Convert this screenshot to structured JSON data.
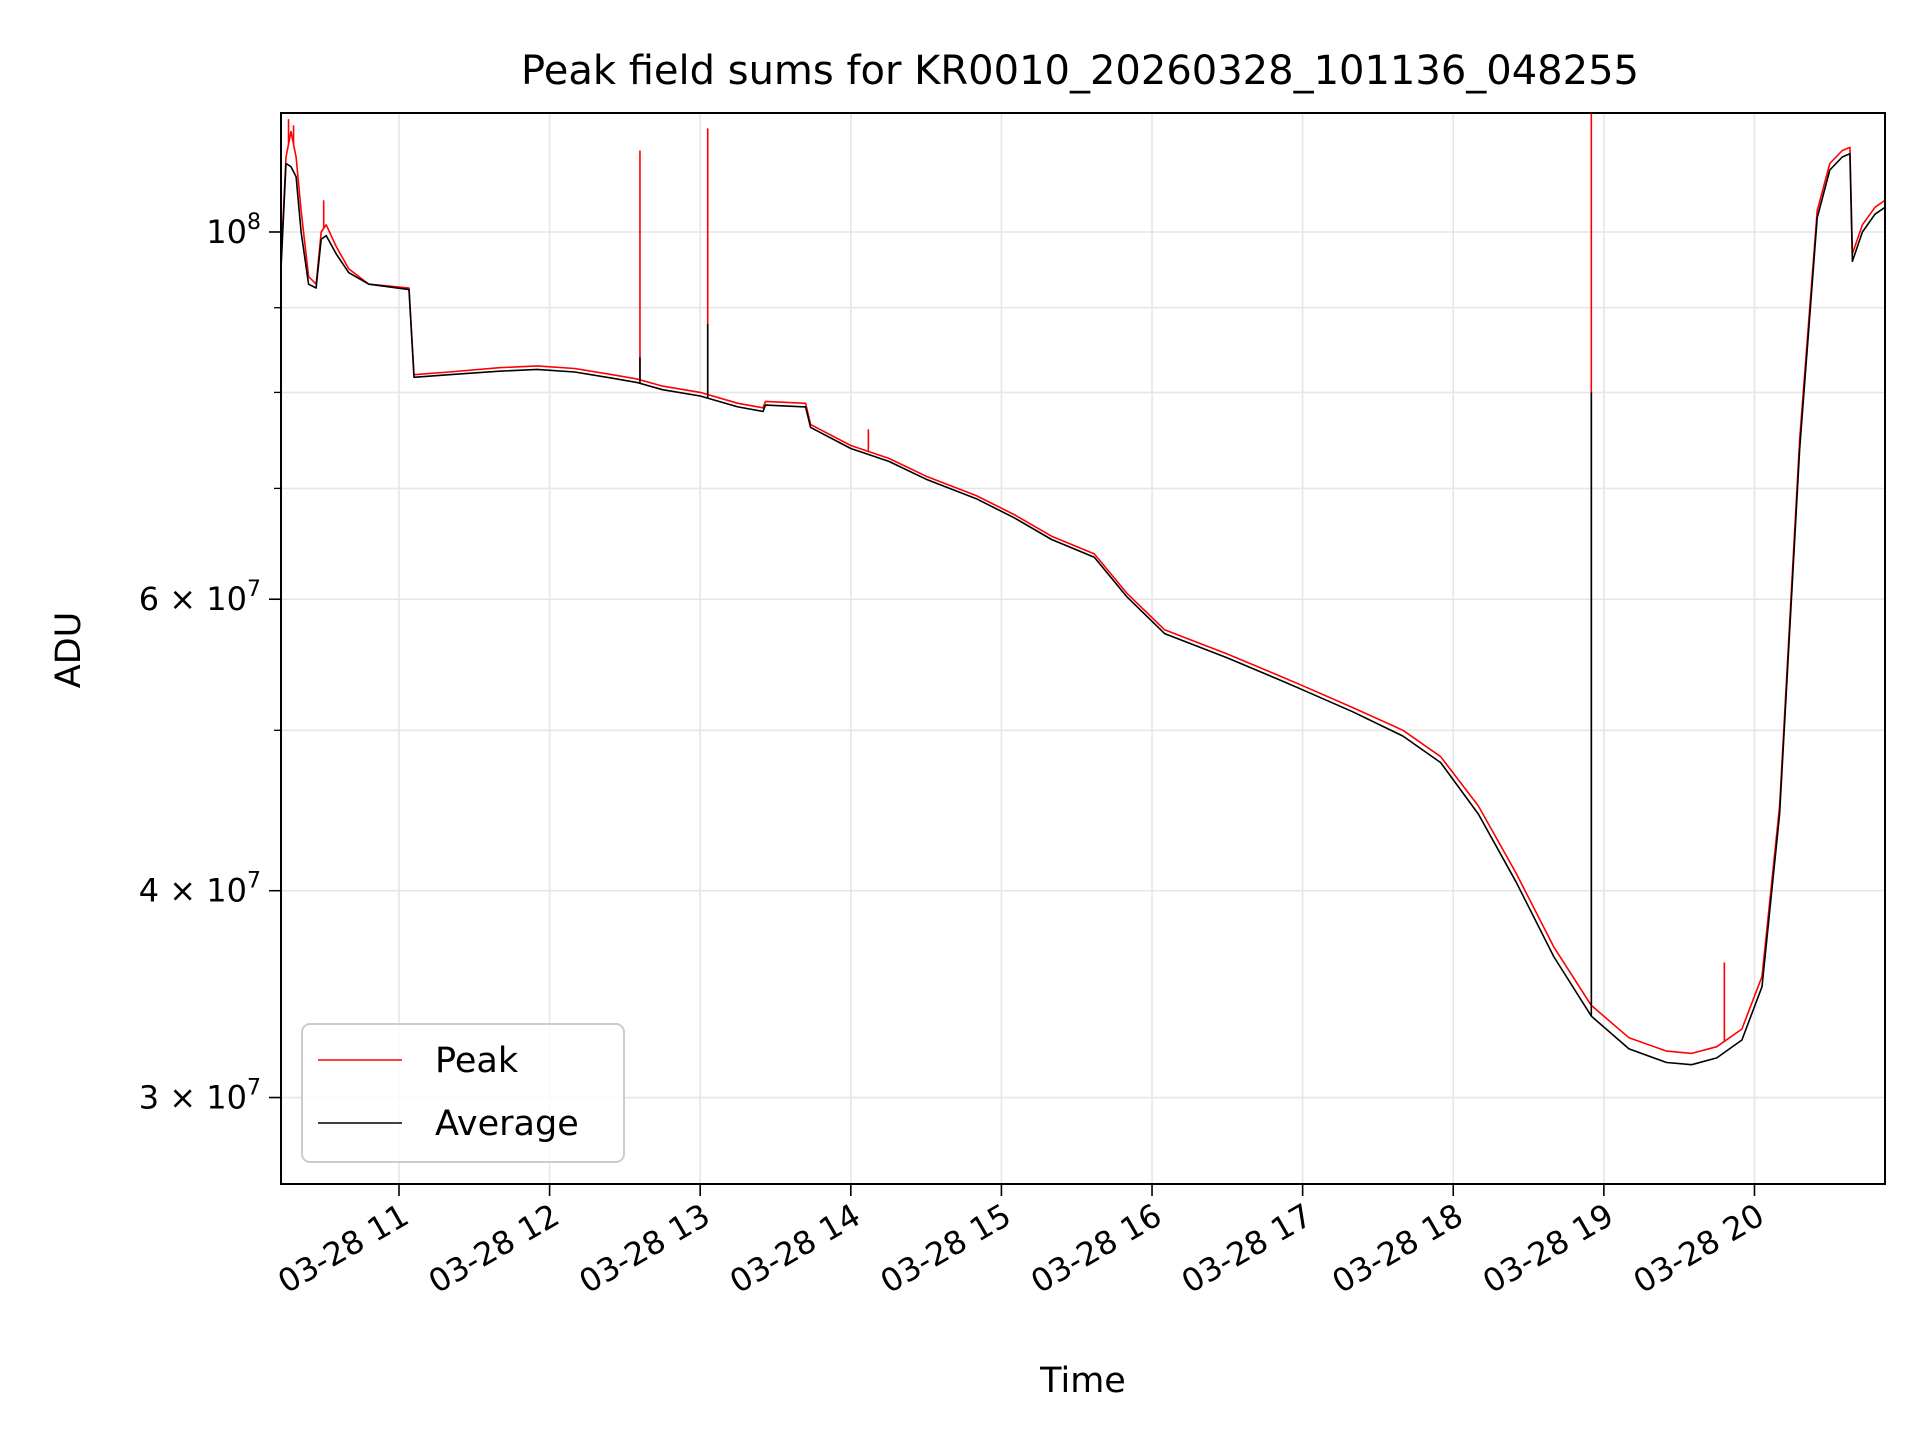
{
  "chart_data": {
    "type": "line",
    "title": "Peak field sums for KR0010_20260328_101136_048255",
    "xlabel": "Time",
    "ylabel": "ADU",
    "yscale": "log",
    "ylim": [
      26600000,
      118000000
    ],
    "xlim": [
      "2026-03-28 10:13",
      "2026-03-28 20:52"
    ],
    "grid": true,
    "legend_location": "lower-left",
    "x_ticks": [
      "03-28 11",
      "03-28 12",
      "03-28 13",
      "03-28 14",
      "03-28 15",
      "03-28 16",
      "03-28 17",
      "03-28 18",
      "03-28 19",
      "03-28 20"
    ],
    "y_ticks": [
      {
        "value": 30000000,
        "base": "3 × 10",
        "exp": "7"
      },
      {
        "value": 40000000,
        "base": "4 × 10",
        "exp": "7"
      },
      {
        "value": 60000000,
        "base": "6 × 10",
        "exp": "7"
      },
      {
        "value": 100000000,
        "base": "10",
        "exp": "8"
      }
    ],
    "y_minor_ticks": [
      50000000,
      70000000,
      80000000,
      90000000
    ],
    "series": [
      {
        "name": "Peak",
        "color": "#ff0000",
        "points": [
          [
            "2026-03-28 10:13",
            96000000
          ],
          [
            "2026-03-28 10:15",
            111000000
          ],
          [
            "2026-03-28 10:17",
            115000000
          ],
          [
            "2026-03-28 10:19",
            111000000
          ],
          [
            "2026-03-28 10:21",
            103000000
          ],
          [
            "2026-03-28 10:24",
            94000000
          ],
          [
            "2026-03-28 10:27",
            93000000
          ],
          [
            "2026-03-28 10:29",
            100000000
          ],
          [
            "2026-03-28 10:31",
            101000000
          ],
          [
            "2026-03-28 10:35",
            98000000
          ],
          [
            "2026-03-28 10:40",
            95000000
          ],
          [
            "2026-03-28 10:48",
            93000000
          ],
          [
            "2026-03-28 11:04",
            92500000
          ],
          [
            "2026-03-28 11:06",
            82000000
          ],
          [
            "2026-03-28 11:20",
            82300000
          ],
          [
            "2026-03-28 11:40",
            82800000
          ],
          [
            "2026-03-28 11:55",
            83000000
          ],
          [
            "2026-03-28 12:10",
            82700000
          ],
          [
            "2026-03-28 12:25",
            82000000
          ],
          [
            "2026-03-28 12:35",
            81500000
          ],
          [
            "2026-03-28 12:45",
            80700000
          ],
          [
            "2026-03-28 13:00",
            80000000
          ],
          [
            "2026-03-28 13:15",
            78800000
          ],
          [
            "2026-03-28 13:25",
            78300000
          ],
          [
            "2026-03-28 13:26",
            79000000
          ],
          [
            "2026-03-28 13:42",
            78800000
          ],
          [
            "2026-03-28 13:44",
            76500000
          ],
          [
            "2026-03-28 14:00",
            74300000
          ],
          [
            "2026-03-28 14:15",
            73000000
          ],
          [
            "2026-03-28 14:30",
            71200000
          ],
          [
            "2026-03-28 14:50",
            69300000
          ],
          [
            "2026-03-28 15:05",
            67500000
          ],
          [
            "2026-03-28 15:20",
            65500000
          ],
          [
            "2026-03-28 15:37",
            63900000
          ],
          [
            "2026-03-28 15:50",
            60500000
          ],
          [
            "2026-03-28 16:05",
            57500000
          ],
          [
            "2026-03-28 16:30",
            55600000
          ],
          [
            "2026-03-28 16:50",
            54000000
          ],
          [
            "2026-03-28 17:00",
            53200000
          ],
          [
            "2026-03-28 17:20",
            51600000
          ],
          [
            "2026-03-28 17:40",
            50000000
          ],
          [
            "2026-03-28 17:55",
            48200000
          ],
          [
            "2026-03-28 18:10",
            45000000
          ],
          [
            "2026-03-28 18:25",
            41000000
          ],
          [
            "2026-03-28 18:40",
            37000000
          ],
          [
            "2026-03-28 18:55",
            34100000
          ],
          [
            "2026-03-28 19:10",
            32600000
          ],
          [
            "2026-03-28 19:25",
            32000000
          ],
          [
            "2026-03-28 19:35",
            31900000
          ],
          [
            "2026-03-28 19:45",
            32200000
          ],
          [
            "2026-03-28 19:55",
            33000000
          ],
          [
            "2026-03-28 20:03",
            35500000
          ],
          [
            "2026-03-28 20:10",
            45000000
          ],
          [
            "2026-03-28 20:18",
            75000000
          ],
          [
            "2026-03-28 20:25",
            103000000
          ],
          [
            "2026-03-28 20:30",
            110000000
          ],
          [
            "2026-03-28 20:35",
            112000000
          ],
          [
            "2026-03-28 20:38",
            112500000
          ],
          [
            "2026-03-28 20:39",
            97000000
          ],
          [
            "2026-03-28 20:43",
            101000000
          ],
          [
            "2026-03-28 20:48",
            103500000
          ],
          [
            "2026-03-28 20:52",
            104500000
          ]
        ],
        "spikes": [
          [
            "2026-03-28 10:16",
            117000000
          ],
          [
            "2026-03-28 10:18",
            116000000
          ],
          [
            "2026-03-28 10:30",
            104500000
          ],
          [
            "2026-03-28 12:36",
            112000000
          ],
          [
            "2026-03-28 13:03",
            115500000
          ],
          [
            "2026-03-28 14:07",
            76000000
          ],
          [
            "2026-03-28 18:55",
            118000000
          ],
          [
            "2026-03-28 19:48",
            36200000
          ]
        ]
      },
      {
        "name": "Average",
        "color": "#000000",
        "points": [
          [
            "2026-03-28 10:13",
            95000000
          ],
          [
            "2026-03-28 10:15",
            110000000
          ],
          [
            "2026-03-28 10:17",
            109500000
          ],
          [
            "2026-03-28 10:19",
            108000000
          ],
          [
            "2026-03-28 10:21",
            100000000
          ],
          [
            "2026-03-28 10:24",
            93000000
          ],
          [
            "2026-03-28 10:27",
            92500000
          ],
          [
            "2026-03-28 10:29",
            99000000
          ],
          [
            "2026-03-28 10:31",
            99500000
          ],
          [
            "2026-03-28 10:35",
            97000000
          ],
          [
            "2026-03-28 10:40",
            94500000
          ],
          [
            "2026-03-28 10:48",
            93000000
          ],
          [
            "2026-03-28 11:04",
            92300000
          ],
          [
            "2026-03-28 11:06",
            81700000
          ],
          [
            "2026-03-28 11:20",
            82000000
          ],
          [
            "2026-03-28 11:40",
            82400000
          ],
          [
            "2026-03-28 11:55",
            82600000
          ],
          [
            "2026-03-28 12:10",
            82300000
          ],
          [
            "2026-03-28 12:25",
            81600000
          ],
          [
            "2026-03-28 12:35",
            81100000
          ],
          [
            "2026-03-28 12:45",
            80300000
          ],
          [
            "2026-03-28 13:00",
            79600000
          ],
          [
            "2026-03-28 13:15",
            78400000
          ],
          [
            "2026-03-28 13:25",
            77900000
          ],
          [
            "2026-03-28 13:26",
            78600000
          ],
          [
            "2026-03-28 13:42",
            78400000
          ],
          [
            "2026-03-28 13:44",
            76200000
          ],
          [
            "2026-03-28 14:00",
            74000000
          ],
          [
            "2026-03-28 14:15",
            72700000
          ],
          [
            "2026-03-28 14:30",
            70900000
          ],
          [
            "2026-03-28 14:50",
            69000000
          ],
          [
            "2026-03-28 15:05",
            67200000
          ],
          [
            "2026-03-28 15:20",
            65200000
          ],
          [
            "2026-03-28 15:37",
            63600000
          ],
          [
            "2026-03-28 15:50",
            60200000
          ],
          [
            "2026-03-28 16:05",
            57200000
          ],
          [
            "2026-03-28 16:30",
            55300000
          ],
          [
            "2026-03-28 16:50",
            53700000
          ],
          [
            "2026-03-28 17:00",
            52900000
          ],
          [
            "2026-03-28 17:20",
            51300000
          ],
          [
            "2026-03-28 17:40",
            49600000
          ],
          [
            "2026-03-28 17:55",
            47800000
          ],
          [
            "2026-03-28 18:10",
            44500000
          ],
          [
            "2026-03-28 18:25",
            40500000
          ],
          [
            "2026-03-28 18:40",
            36500000
          ],
          [
            "2026-03-28 18:55",
            33600000
          ],
          [
            "2026-03-28 19:10",
            32100000
          ],
          [
            "2026-03-28 19:25",
            31500000
          ],
          [
            "2026-03-28 19:35",
            31400000
          ],
          [
            "2026-03-28 19:45",
            31700000
          ],
          [
            "2026-03-28 19:55",
            32500000
          ],
          [
            "2026-03-28 20:03",
            35000000
          ],
          [
            "2026-03-28 20:10",
            44500000
          ],
          [
            "2026-03-28 20:18",
            74000000
          ],
          [
            "2026-03-28 20:25",
            102000000
          ],
          [
            "2026-03-28 20:30",
            109000000
          ],
          [
            "2026-03-28 20:35",
            111000000
          ],
          [
            "2026-03-28 20:38",
            111500000
          ],
          [
            "2026-03-28 20:39",
            96000000
          ],
          [
            "2026-03-28 20:43",
            100000000
          ],
          [
            "2026-03-28 20:48",
            102500000
          ],
          [
            "2026-03-28 20:52",
            103500000
          ]
        ],
        "spikes": [
          [
            "2026-03-28 12:36",
            84000000
          ],
          [
            "2026-03-28 13:03",
            88000000
          ],
          [
            "2026-03-28 18:55",
            80000000
          ]
        ]
      }
    ]
  }
}
